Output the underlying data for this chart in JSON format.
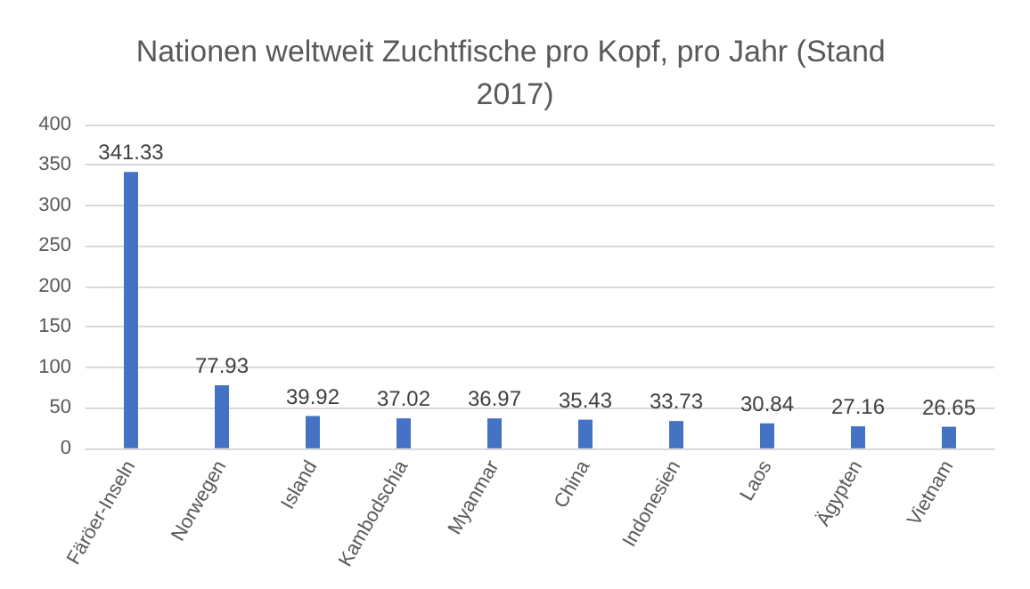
{
  "chart_data": {
    "type": "bar",
    "title": "Nationen weltweit Zuchtfische pro Kopf, pro Jahr (Stand 2017)",
    "categories": [
      "Färöer-Inseln",
      "Norwegen",
      "Island",
      "Kambodschia",
      "Myanmar",
      "China",
      "Indonesien",
      "Laos",
      "Ägypten",
      "Vietnam"
    ],
    "values": [
      341.33,
      77.93,
      39.92,
      37.02,
      36.97,
      35.43,
      33.73,
      30.84,
      27.16,
      26.65
    ],
    "color": "#4472c4",
    "ylim": [
      0,
      400
    ],
    "yticks": [
      0,
      50,
      100,
      150,
      200,
      250,
      300,
      350,
      400
    ],
    "grid": true,
    "data_labels": true
  }
}
